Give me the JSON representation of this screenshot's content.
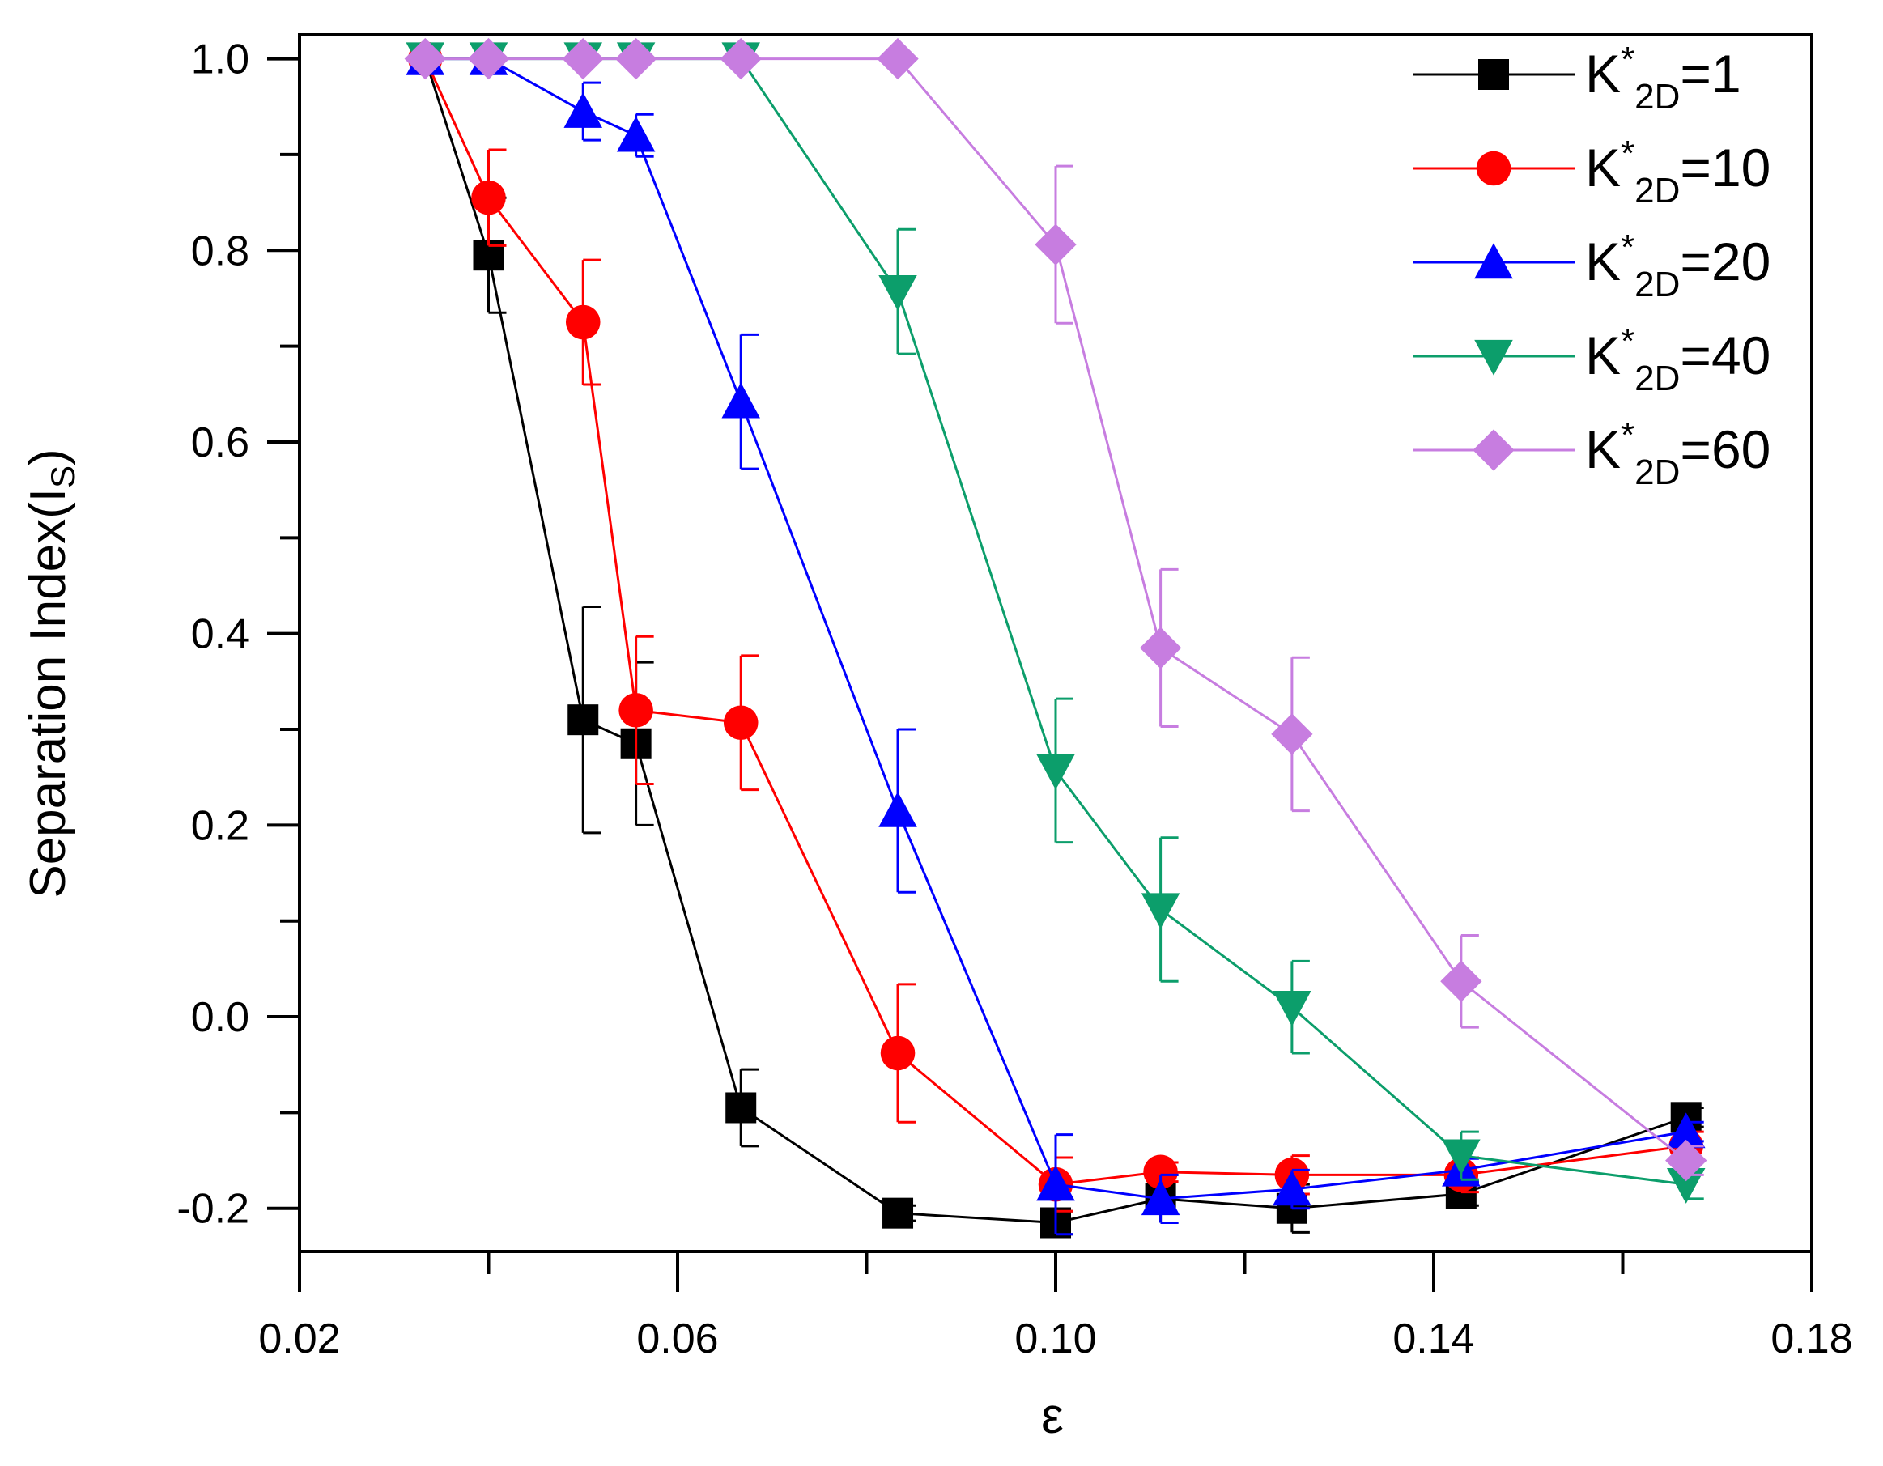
{
  "chart_data": {
    "type": "line",
    "title": "",
    "xlabel": "ε",
    "ylabel": "Separation Index(I",
    "ylabel_sub": "S",
    "ylabel_close": ")",
    "xlim": [
      0.02,
      0.18
    ],
    "ylim": [
      -0.245,
      1.025
    ],
    "x_ticks": [
      0.02,
      0.06,
      0.1,
      0.14,
      0.18
    ],
    "x_tick_labels": [
      "0.02",
      "0.06",
      "0.10",
      "0.14",
      "0.18"
    ],
    "x_minor_ticks": [
      0.04,
      0.08,
      0.12,
      0.16
    ],
    "y_ticks": [
      -0.2,
      0.0,
      0.2,
      0.4,
      0.6,
      0.8,
      1.0
    ],
    "y_tick_labels": [
      "-0.2",
      "0.0",
      "0.2",
      "0.4",
      "0.6",
      "0.8",
      "1.0"
    ],
    "y_minor_ticks": [
      -0.1,
      0.1,
      0.3,
      0.5,
      0.7,
      0.9
    ],
    "grid": false,
    "legend_position": "top-right",
    "x": [
      0.0333,
      0.04,
      0.05,
      0.0556,
      0.0667,
      0.0833,
      0.1,
      0.1111,
      0.125,
      0.1429,
      0.1667
    ],
    "series": [
      {
        "name": "K*2D=1",
        "label_main": "K",
        "label_sup": "*",
        "label_sub": "2D",
        "label_tail": "=1",
        "color": "#000000",
        "marker": "square",
        "values": [
          1.0,
          0.795,
          0.31,
          0.285,
          -0.095,
          -0.205,
          -0.215,
          -0.19,
          -0.2,
          -0.185,
          -0.105
        ],
        "errors": [
          0.005,
          0.06,
          0.118,
          0.085,
          0.04,
          0.008,
          0.012,
          0.025,
          0.025,
          0.012,
          0.01
        ]
      },
      {
        "name": "K*2D=10",
        "label_main": "K",
        "label_sup": "*",
        "label_sub": "2D",
        "label_tail": "=10",
        "color": "#ff0000",
        "marker": "circle",
        "values": [
          1.0,
          0.855,
          0.725,
          0.32,
          0.307,
          -0.038,
          -0.175,
          -0.162,
          -0.165,
          -0.165,
          -0.135
        ],
        "errors": [
          0.005,
          0.05,
          0.065,
          0.077,
          0.07,
          0.072,
          0.028,
          0.01,
          0.02,
          0.018,
          0.015
        ]
      },
      {
        "name": "K*2D=20",
        "label_main": "K",
        "label_sup": "*",
        "label_sub": "2D",
        "label_tail": "=20",
        "color": "#0000ff",
        "marker": "triangle-up",
        "values": [
          1.0,
          1.0,
          0.945,
          0.92,
          0.642,
          0.215,
          -0.175,
          -0.19,
          -0.18,
          -0.16,
          -0.12
        ],
        "errors": [
          0.005,
          0.005,
          0.03,
          0.022,
          0.07,
          0.085,
          0.052,
          0.025,
          0.02,
          0.012,
          0.01
        ]
      },
      {
        "name": "K*2D=40",
        "label_main": "K",
        "label_sup": "*",
        "label_sub": "2D",
        "label_tail": "=40",
        "color": "#0c9e6b",
        "marker": "triangle-down",
        "values": [
          1.0,
          1.0,
          1.0,
          1.0,
          1.0,
          0.757,
          0.257,
          0.112,
          0.01,
          -0.145,
          -0.175
        ],
        "errors": [
          0.005,
          0.005,
          0.005,
          0.005,
          0.005,
          0.065,
          0.075,
          0.075,
          0.048,
          0.025,
          0.015
        ]
      },
      {
        "name": "K*2D=60",
        "label_main": "K",
        "label_sup": "*",
        "label_sub": "2D",
        "label_tail": "=60",
        "color": "#c77de0",
        "marker": "diamond",
        "values": [
          1.0,
          1.0,
          1.0,
          1.0,
          1.0,
          1.0,
          0.806,
          0.385,
          0.295,
          0.037,
          -0.15
        ],
        "errors": [
          0.005,
          0.005,
          0.005,
          0.005,
          0.005,
          0.005,
          0.082,
          0.082,
          0.08,
          0.048,
          0.015
        ]
      }
    ]
  }
}
